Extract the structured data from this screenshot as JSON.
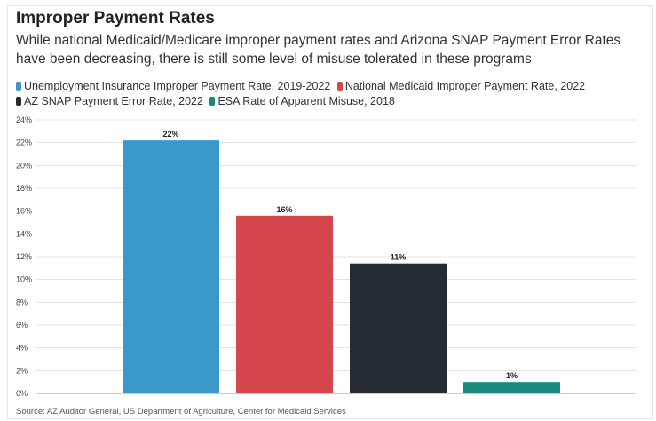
{
  "chart_data": {
    "type": "bar",
    "title": "Improper Payment Rates",
    "subtitle": "While national Medicaid/Medicare improper payment rates and Arizona SNAP Payment Error Rates have been decreasing, there is still some level of misuse tolerated in these programs",
    "categories": [
      "Unemployment Insurance Improper Payment Rate, 2019-2022",
      "National Medicaid Improper Payment Rate, 2022",
      "AZ SNAP Payment Error Rate, 2022",
      "ESA Rate of Apparent Misuse, 2018"
    ],
    "values": [
      22.2,
      15.6,
      11.4,
      1.0
    ],
    "data_labels": [
      "22%",
      "16%",
      "11%",
      "1%"
    ],
    "colors": [
      "#3a99c9",
      "#d6474d",
      "#262c33",
      "#1b8a7e"
    ],
    "xlabel": "",
    "ylabel": "",
    "ylim": [
      0,
      24
    ],
    "yticks": [
      0,
      2,
      4,
      6,
      8,
      10,
      12,
      14,
      16,
      18,
      20,
      22,
      24
    ],
    "ytick_labels": [
      "0%",
      "2%",
      "4%",
      "6%",
      "8%",
      "10%",
      "12%",
      "14%",
      "16%",
      "18%",
      "20%",
      "22%",
      "24%"
    ],
    "grid": true,
    "legend_position": "top",
    "source": "Source: AZ Auditor General, US Department of Agriculture, Center for Medicaid Services"
  }
}
